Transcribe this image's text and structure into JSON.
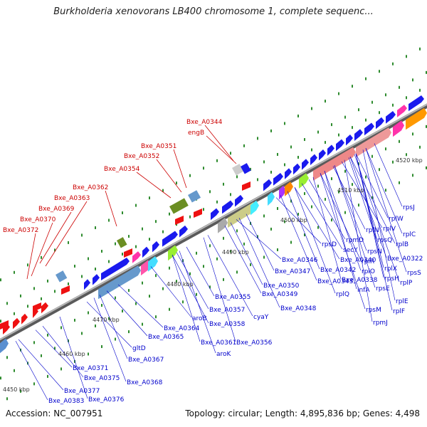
{
  "title": "Burkholderia xenovorans LB400 chromosome 1, complete sequenc...",
  "footer": {
    "accession": "Accession: NC_007951",
    "stats": "Topology: circular; Length: 4,895,836 bp; Genes: 4,498"
  },
  "colors": {
    "backbone": "#8c8c8c",
    "dots": "#2e8b2e",
    "red_label": "#cc0000",
    "blue_label": "#0000cc",
    "gene_blue": "#1a1aee",
    "gene_red": "#ee1111"
  },
  "kbp_ticks": [
    "4450 kbp",
    "4460 kbp",
    "4470 kbp",
    "4480 kbp",
    "4490 kbp",
    "4500 kbp",
    "4510 kbp",
    "4520 kbp"
  ],
  "red_labels": [
    "Bxe_A0344",
    "engB",
    "Bxe_A0351",
    "Bxe_A0352",
    "Bxe_A0354",
    "Bxe_A0362",
    "Bxe_A0363",
    "Bxe_A0369",
    "Bxe_A0370",
    "Bxe_A0372"
  ],
  "blue_labels": [
    "rpsJ",
    "rplW",
    "rplC",
    "rplV",
    "rplB",
    "rpsQ",
    "rplN",
    "rpmD",
    "secY",
    "rpsD",
    "rplX",
    "rpsN",
    "Bxe_A0322",
    "rpsS",
    "rplP",
    "rpsH",
    "rplE",
    "rplF",
    "rpsE",
    "rpsM",
    "rpmJ",
    "infA",
    "rplO",
    "rplR",
    "Bxe_A0340",
    "Bxe_A0338",
    "Bxe_A0342",
    "Bxe_A0343",
    "rplQ",
    "Bxe_A0346",
    "Bxe_A0347",
    "Bxe_A0350",
    "Bxe_A0349",
    "Bxe_A0348",
    "cyaY",
    "Bxe_A0355",
    "Bxe_A0357",
    "Bxe_A0358",
    "aroB",
    "Bxe_A0364",
    "Bxe_A0361",
    "Bxe_A0356",
    "aroK",
    "Bxe_A0365",
    "gltD",
    "Bxe_A0367",
    "Bxe_A0368",
    "Bxe_A0371",
    "Bxe_A0375",
    "Bxe_A0377",
    "Bxe_A0376",
    "Bxe_A0383"
  ]
}
